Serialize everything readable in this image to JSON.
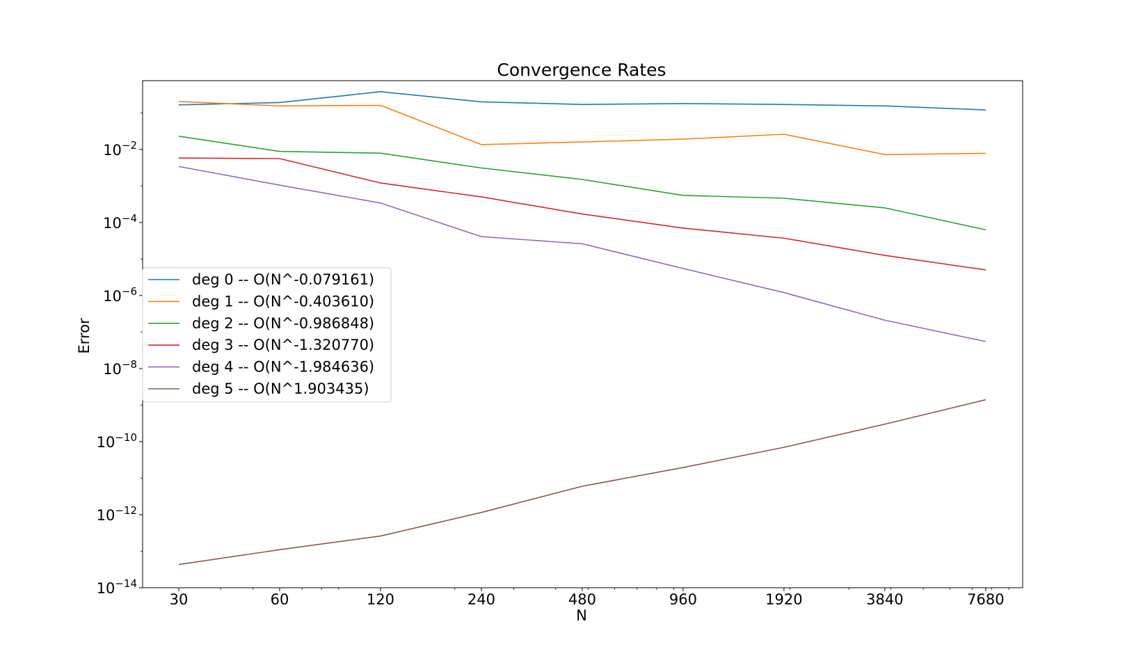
{
  "chart_data": {
    "type": "line",
    "title": "Convergence Rates",
    "xlabel": "N",
    "ylabel": "Error",
    "xscale": "log",
    "yscale": "log",
    "x": [
      30,
      60,
      120,
      240,
      480,
      960,
      1920,
      3840,
      7680
    ],
    "xticks": [
      "30",
      "60",
      "120",
      "240",
      "480",
      "960",
      "1920",
      "3840",
      "7680"
    ],
    "xlim": [
      23.4,
      9900
    ],
    "ylim": [
      1e-14,
      0.76
    ],
    "yticks": [
      {
        "base": "10",
        "exp": "−14",
        "value": 1e-14
      },
      {
        "base": "10",
        "exp": "−12",
        "value": 1e-12
      },
      {
        "base": "10",
        "exp": "−10",
        "value": 1e-10
      },
      {
        "base": "10",
        "exp": "−8",
        "value": 1e-08
      },
      {
        "base": "10",
        "exp": "−6",
        "value": 1e-06
      },
      {
        "base": "10",
        "exp": "−4",
        "value": 0.0001
      },
      {
        "base": "10",
        "exp": "−2",
        "value": 0.01
      }
    ],
    "legend_position": "center-left",
    "grid": false,
    "series": [
      {
        "name": "deg 0 -- O(N^-0.079161)",
        "color": "#1f77b4",
        "values": [
          0.165,
          0.192,
          0.38,
          0.2,
          0.17,
          0.18,
          0.17,
          0.155,
          0.12
        ]
      },
      {
        "name": "deg 1 -- O(N^-0.403610)",
        "color": "#ff7f0e",
        "values": [
          0.205,
          0.155,
          0.16,
          0.0135,
          0.016,
          0.019,
          0.026,
          0.0072,
          0.0078
        ]
      },
      {
        "name": "deg 2 -- O(N^-0.986848)",
        "color": "#2ca02c",
        "values": [
          0.023,
          0.0088,
          0.0079,
          0.0031,
          0.0015,
          0.00055,
          0.00046,
          0.00025,
          6.3e-05
        ]
      },
      {
        "name": "deg 3 -- O(N^-1.320770)",
        "color": "#d62728",
        "values": [
          0.0058,
          0.0056,
          0.0012,
          0.0005,
          0.00017,
          7e-05,
          3.7e-05,
          1.25e-05,
          5e-06
        ]
      },
      {
        "name": "deg 4 -- O(N^-1.984636)",
        "color": "#9467bd",
        "values": [
          0.0034,
          0.00105,
          0.00034,
          4.1e-05,
          2.6e-05,
          5.5e-06,
          1.2e-06,
          2.1e-07,
          5.5e-08
        ]
      },
      {
        "name": "deg 5 -- O(N^1.903435)",
        "color": "#8c564b",
        "values": [
          4.3e-14,
          1.1e-13,
          2.6e-13,
          1.15e-12,
          6e-12,
          1.95e-11,
          7e-11,
          3e-10,
          1.4e-09
        ]
      }
    ]
  }
}
